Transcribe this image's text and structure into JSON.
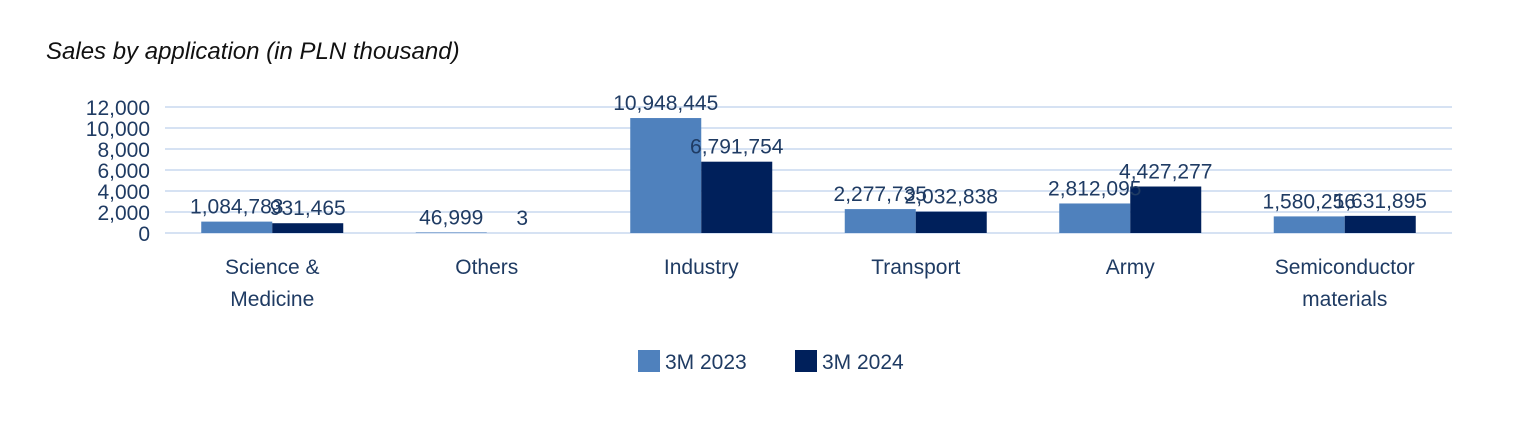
{
  "chart_data": {
    "type": "bar",
    "title": "Sales by application (in PLN thousand)",
    "categories": [
      "Science &\nMedicine",
      "Others",
      "Industry",
      "Transport",
      "Army",
      "Semiconductor\nmaterials"
    ],
    "series": [
      {
        "name": "3M 2023",
        "color": "#4f81bd",
        "values": [
          1084.783,
          46.999,
          10948.445,
          2277.735,
          2812.095,
          1580.256
        ],
        "labels": [
          "1,084,783",
          "46,999",
          "10,948,445",
          "2,277,735",
          "2,812,095",
          "1,580,256"
        ]
      },
      {
        "name": "3M 2024",
        "color": "#00205b",
        "values": [
          931.465,
          0.003,
          6791.754,
          2032.838,
          4427.277,
          1631.895
        ],
        "labels": [
          "931,465",
          "3",
          "6,791,754",
          "2,032,838",
          "4,427,277",
          "1,631,895"
        ]
      }
    ],
    "yticks": [
      "0",
      "2,000",
      "4,000",
      "6,000",
      "8,000",
      "10,000",
      "12,000"
    ],
    "ylim": [
      0,
      12000
    ],
    "grid": true,
    "legend": "bottom"
  }
}
